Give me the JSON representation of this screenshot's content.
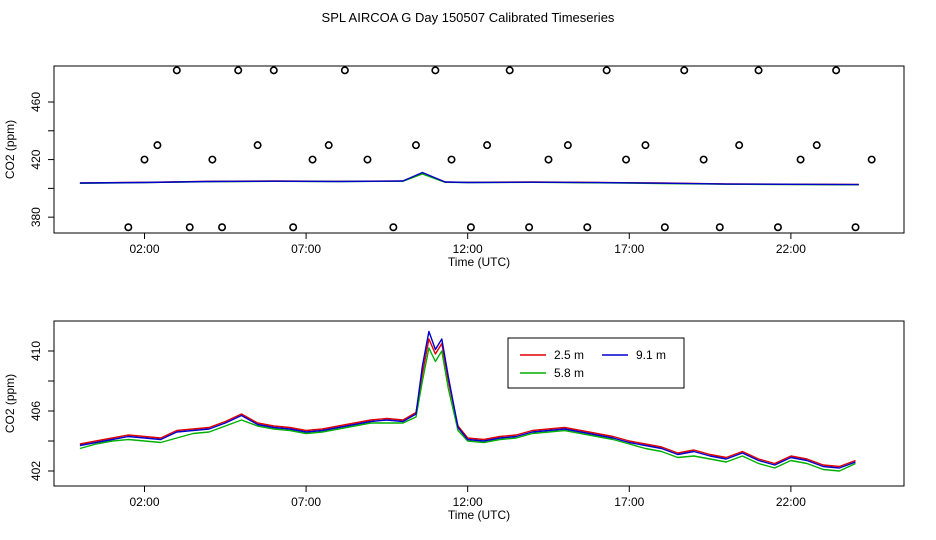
{
  "title": "SPL AIRCOA G  Day 150507  Calibrated Timeseries",
  "colors": {
    "s25": "#e00000",
    "s58": "#00b000",
    "s91": "#0000cc",
    "axis": "#000000"
  },
  "chart_data": [
    {
      "type": "scatter+line",
      "xlabel": "Time (UTC)",
      "ylabel": "CO2 (ppm)",
      "xlim": [
        -0.8,
        25.5
      ],
      "ylim": [
        369,
        485
      ],
      "x_ticks": [
        2,
        7,
        12,
        17,
        22
      ],
      "x_tick_labels": [
        "02:00",
        "07:00",
        "12:00",
        "17:00",
        "22:00"
      ],
      "y_ticks": [
        380,
        420,
        460
      ],
      "y_tick_labels": [
        "380",
        "420",
        "460"
      ],
      "y_minor_ticks": [
        400,
        440
      ],
      "cal_points_x": [
        1.5,
        2.0,
        2.4,
        3.0,
        3.4,
        4.1,
        4.4,
        4.9,
        5.5,
        6.0,
        6.6,
        7.2,
        7.7,
        8.2,
        8.9,
        9.7,
        10.4,
        11.0,
        11.5,
        12.1,
        12.6,
        13.3,
        13.9,
        14.5,
        15.1,
        15.7,
        16.3,
        16.9,
        17.5,
        18.1,
        18.7,
        19.3,
        19.8,
        20.4,
        21.0,
        21.6,
        22.3,
        22.8,
        23.4,
        24.0,
        24.5
      ],
      "cal_points_y": [
        373,
        420,
        430,
        482,
        373,
        420,
        373,
        482,
        430,
        482,
        373,
        420,
        430,
        482,
        420,
        373,
        430,
        482,
        420,
        373,
        430,
        482,
        373,
        420,
        430,
        373,
        482,
        420,
        430,
        373,
        482,
        420,
        373,
        430,
        482,
        373,
        420,
        430,
        482,
        373,
        420
      ],
      "series": [
        {
          "name": "2.5 m",
          "x": [
            0,
            2,
            4,
            6,
            8,
            10,
            10.6,
            11.3,
            12,
            14,
            16,
            18,
            20,
            22,
            24.1
          ],
          "y": [
            403.8,
            404.2,
            404.9,
            405.1,
            404.9,
            405.2,
            410.5,
            404.5,
            404.2,
            404.4,
            404.1,
            403.7,
            403.1,
            402.9,
            402.7
          ]
        },
        {
          "name": "5.8 m",
          "x": [
            0,
            2,
            4,
            6,
            8,
            10,
            10.6,
            11.3,
            12,
            14,
            16,
            18,
            20,
            22,
            24.1
          ],
          "y": [
            403.5,
            404.0,
            404.6,
            404.9,
            404.7,
            405.0,
            410.0,
            404.2,
            404.0,
            404.2,
            403.9,
            403.4,
            402.9,
            402.6,
            402.5
          ]
        },
        {
          "name": "9.1 m",
          "x": [
            0,
            2,
            4,
            6,
            8,
            10,
            10.6,
            11.3,
            12,
            14,
            16,
            18,
            20,
            22,
            24.1
          ],
          "y": [
            403.7,
            404.1,
            404.8,
            405.0,
            404.8,
            405.1,
            411.0,
            404.4,
            404.1,
            404.3,
            404.0,
            403.6,
            403.0,
            402.8,
            402.6
          ]
        }
      ]
    },
    {
      "type": "line",
      "xlabel": "Time (UTC)",
      "ylabel": "CO2 (ppm)",
      "xlim": [
        -0.8,
        25.5
      ],
      "ylim": [
        401.0,
        412.0
      ],
      "x_ticks": [
        2,
        7,
        12,
        17,
        22
      ],
      "x_tick_labels": [
        "02:00",
        "07:00",
        "12:00",
        "17:00",
        "22:00"
      ],
      "y_ticks": [
        402,
        406,
        410
      ],
      "y_tick_labels": [
        "402",
        "406",
        "410"
      ],
      "y_minor_ticks": [
        404,
        408
      ],
      "legend": {
        "placement": "top-center"
      },
      "series": [
        {
          "name": "2.5 m",
          "color": "#e00000",
          "x": [
            0.0,
            0.5,
            1.0,
            1.5,
            2.0,
            2.5,
            3.0,
            3.5,
            4.0,
            4.5,
            5.0,
            5.5,
            6.0,
            6.5,
            7.0,
            7.5,
            8.0,
            8.5,
            9.0,
            9.5,
            10.0,
            10.4,
            10.6,
            10.8,
            11.0,
            11.2,
            11.4,
            11.7,
            12.0,
            12.5,
            13.0,
            13.5,
            14.0,
            14.5,
            15.0,
            15.5,
            16.0,
            16.5,
            17.0,
            17.5,
            18.0,
            18.5,
            19.0,
            19.5,
            20.0,
            20.5,
            21.0,
            21.5,
            22.0,
            22.5,
            23.0,
            23.5,
            24.0
          ],
          "y": [
            403.8,
            404.0,
            404.2,
            404.4,
            404.3,
            404.2,
            404.7,
            404.8,
            404.9,
            405.3,
            405.8,
            405.2,
            405.0,
            404.9,
            404.7,
            404.8,
            405.0,
            405.2,
            405.4,
            405.5,
            405.4,
            405.9,
            408.5,
            410.8,
            409.8,
            410.5,
            408.0,
            405.0,
            404.2,
            404.1,
            404.3,
            404.4,
            404.7,
            404.8,
            404.9,
            404.7,
            404.5,
            404.3,
            404.0,
            403.8,
            403.6,
            403.2,
            403.4,
            403.1,
            402.9,
            403.3,
            402.8,
            402.5,
            403.0,
            402.8,
            402.4,
            402.3,
            402.7
          ]
        },
        {
          "name": "5.8 m",
          "color": "#00b000",
          "x": [
            0.0,
            0.5,
            1.0,
            1.5,
            2.0,
            2.5,
            3.0,
            3.5,
            4.0,
            4.5,
            5.0,
            5.5,
            6.0,
            6.5,
            7.0,
            7.5,
            8.0,
            8.5,
            9.0,
            9.5,
            10.0,
            10.4,
            10.6,
            10.8,
            11.0,
            11.2,
            11.4,
            11.7,
            12.0,
            12.5,
            13.0,
            13.5,
            14.0,
            14.5,
            15.0,
            15.5,
            16.0,
            16.5,
            17.0,
            17.5,
            18.0,
            18.5,
            19.0,
            19.5,
            20.0,
            20.5,
            21.0,
            21.5,
            22.0,
            22.5,
            23.0,
            23.5,
            24.0
          ],
          "y": [
            403.5,
            403.8,
            404.0,
            404.1,
            404.0,
            403.9,
            404.2,
            404.5,
            404.6,
            405.0,
            405.4,
            405.0,
            404.8,
            404.7,
            404.5,
            404.6,
            404.8,
            405.0,
            405.2,
            405.2,
            405.2,
            405.6,
            408.0,
            410.2,
            409.3,
            410.0,
            407.5,
            404.7,
            404.0,
            403.9,
            404.1,
            404.2,
            404.5,
            404.6,
            404.7,
            404.5,
            404.3,
            404.1,
            403.8,
            403.5,
            403.3,
            402.9,
            403.0,
            402.8,
            402.6,
            403.0,
            402.5,
            402.2,
            402.7,
            402.5,
            402.1,
            402.0,
            402.5
          ]
        },
        {
          "name": "9.1 m",
          "color": "#0000cc",
          "x": [
            0.0,
            0.5,
            1.0,
            1.5,
            2.0,
            2.5,
            3.0,
            3.5,
            4.0,
            4.5,
            5.0,
            5.5,
            6.0,
            6.5,
            7.0,
            7.5,
            8.0,
            8.5,
            9.0,
            9.5,
            10.0,
            10.4,
            10.6,
            10.8,
            11.0,
            11.2,
            11.4,
            11.7,
            12.0,
            12.5,
            13.0,
            13.5,
            14.0,
            14.5,
            15.0,
            15.5,
            16.0,
            16.5,
            17.0,
            17.5,
            18.0,
            18.5,
            19.0,
            19.5,
            20.0,
            20.5,
            21.0,
            21.5,
            22.0,
            22.5,
            23.0,
            23.5,
            24.0
          ],
          "y": [
            403.7,
            403.9,
            404.1,
            404.3,
            404.2,
            404.1,
            404.6,
            404.7,
            404.8,
            405.2,
            405.7,
            405.1,
            404.9,
            404.8,
            404.6,
            404.7,
            404.9,
            405.1,
            405.3,
            405.4,
            405.3,
            405.8,
            409.0,
            411.3,
            410.1,
            410.8,
            408.3,
            404.9,
            404.1,
            404.0,
            404.2,
            404.3,
            404.6,
            404.7,
            404.8,
            404.6,
            404.4,
            404.2,
            403.9,
            403.7,
            403.5,
            403.1,
            403.3,
            403.0,
            402.8,
            403.2,
            402.7,
            402.4,
            402.9,
            402.7,
            402.3,
            402.2,
            402.6
          ]
        }
      ]
    }
  ]
}
